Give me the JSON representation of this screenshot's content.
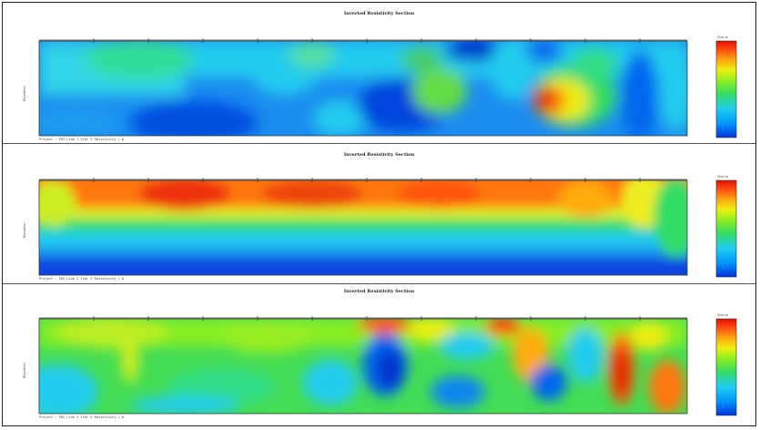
{
  "sections": [
    {
      "title": "Inverted Resistivity Section",
      "footer": "Project : ERI  Line 1  Iter 5  Resistivity / m",
      "ylabel": "Elevation",
      "legend_title": "Ohm-m",
      "legend_ticks": [
        "",
        "",
        "",
        "",
        ""
      ]
    },
    {
      "title": "Inverted Resistivity Section",
      "footer": "Project : ERI Line 2  Iter 5  Resistivity / m",
      "ylabel": "Elevation",
      "legend_title": "Ohm-m",
      "legend_ticks": [
        "",
        "",
        "",
        "",
        ""
      ]
    },
    {
      "title": "Inverted Resistivity Section",
      "footer": "Project : ERI  Line 3  Iter 5  Resistivity / m",
      "ylabel": "Elevation",
      "legend_title": "Ohm-m",
      "legend_ticks": [
        "",
        "",
        "",
        "",
        ""
      ]
    }
  ],
  "colors": {
    "scale": [
      "#0033dd",
      "#0099ff",
      "#22ccee",
      "#33dd66",
      "#88ee22",
      "#eeee11",
      "#ff9911",
      "#ff4411",
      "#dd1100"
    ]
  }
}
